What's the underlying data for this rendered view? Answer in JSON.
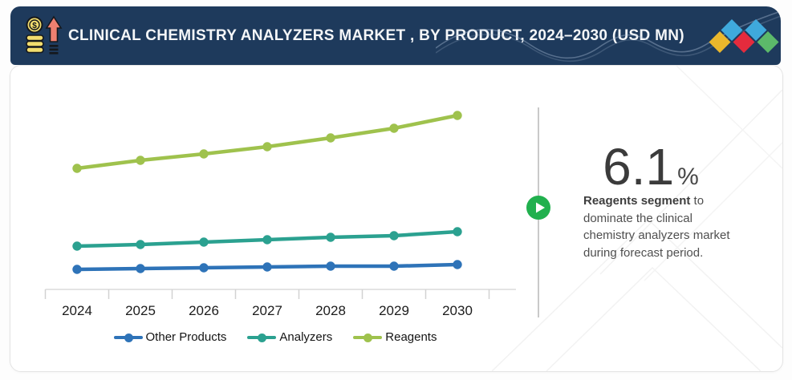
{
  "header": {
    "title": "CLINICAL CHEMISTRY ANALYZERS MARKET , BY PRODUCT, 2024–2030 (USD MN)",
    "bg_color": "#1e3a5c",
    "icon": "money-growth-icon",
    "logo_diamond_colors": [
      "#eab72c",
      "#3fa9dc",
      "#e52b3d",
      "#3fa9dc",
      "#5cb96a"
    ]
  },
  "chart_data": {
    "type": "line",
    "title": "",
    "xlabel": "",
    "ylabel": "",
    "units": "USD MN",
    "categories": [
      "2024",
      "2025",
      "2026",
      "2027",
      "2028",
      "2029",
      "2030"
    ],
    "series": [
      {
        "name": "Other Products",
        "color": "#2e73b8",
        "values": [
          25,
          26,
          27,
          28,
          29,
          29,
          31
        ]
      },
      {
        "name": "Analyzers",
        "color": "#2ba190",
        "values": [
          54,
          56,
          59,
          62,
          65,
          67,
          72
        ]
      },
      {
        "name": "Reagents",
        "color": "#9fc24d",
        "values": [
          151,
          161,
          169,
          178,
          189,
          201,
          217
        ]
      }
    ],
    "ylim": [
      0,
      260
    ],
    "y_axis_visible": false,
    "grid": false,
    "legend_position": "bottom"
  },
  "callout": {
    "value": "6.1",
    "unit": "%",
    "bold_text": "Reagents segment",
    "rest_text": " to dominate the clinical chemistry analyzers market during forecast period.",
    "accent_color": "#21b04e"
  }
}
